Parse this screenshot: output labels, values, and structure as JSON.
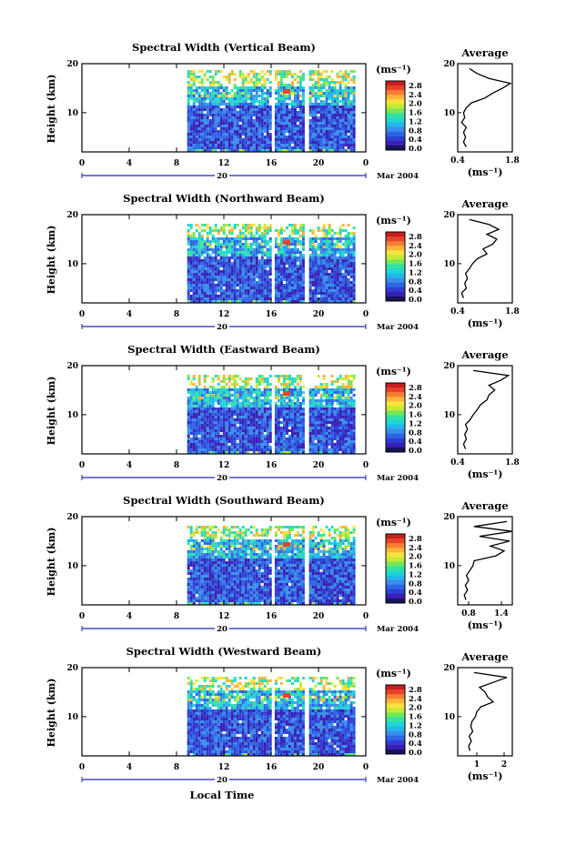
{
  "colorbar_colors": [
    "#17155a",
    "#3a1fb4",
    "#2f3fd4",
    "#2c66e4",
    "#3a8ee9",
    "#22b7e8",
    "#21d6d2",
    "#36e0a4",
    "#74e858",
    "#c8e838",
    "#f7e23d",
    "#fbb43c",
    "#f77d33",
    "#e7432c",
    "#c71f1f"
  ],
  "chart_data": {
    "type": "heatmap",
    "xlabel": "Local Time",
    "x_ticks": [
      "0",
      "4",
      "8",
      "12",
      "16",
      "20",
      "0"
    ],
    "xlim": [
      0,
      24
    ],
    "date_label": "20",
    "month_label": "Mar 2004",
    "ylabel": "Height (km)",
    "y_ticks": [
      "20",
      "10"
    ],
    "ylim": [
      2,
      20
    ],
    "colorbar_unit": "(ms⁻¹)",
    "colorbar_ticks": [
      "2.8",
      "2.4",
      "2.0",
      "1.6",
      "1.2",
      "0.8",
      "0.4",
      "0.0"
    ],
    "data_window_hours": [
      [
        8.9,
        15.9
      ],
      [
        16.3,
        18.7
      ],
      [
        19.2,
        23.1
      ]
    ],
    "panels": [
      {
        "title": "Spectral Width (Vertical Beam)",
        "avg_title": "Average",
        "avg_ticks": [
          "0.4",
          "1.8"
        ],
        "avg_xlim": [
          0.4,
          1.8
        ],
        "avg_unit": "(ms⁻¹)",
        "avg_profile": {
          "height_km": [
            3,
            4,
            5,
            6,
            7,
            8,
            9,
            10,
            11,
            12,
            13,
            14,
            15,
            16,
            17,
            18,
            19
          ],
          "width": [
            0.62,
            0.55,
            0.6,
            0.55,
            0.62,
            0.5,
            0.58,
            0.55,
            0.62,
            0.75,
            1.1,
            1.3,
            1.55,
            1.75,
            1.2,
            0.9,
            0.7
          ]
        }
      },
      {
        "title": "Spectral Width (Northward Beam)",
        "avg_title": "Average",
        "avg_ticks": [
          "0.4",
          "1.8"
        ],
        "avg_xlim": [
          0.4,
          1.8
        ],
        "avg_unit": "(ms⁻¹)",
        "avg_profile": {
          "height_km": [
            3,
            4,
            5,
            6,
            7,
            8,
            9,
            10,
            11,
            12,
            13,
            14,
            15,
            16,
            17,
            18,
            19
          ],
          "width": [
            0.55,
            0.5,
            0.62,
            0.58,
            0.65,
            0.6,
            0.7,
            0.78,
            0.9,
            1.15,
            1.05,
            1.3,
            1.4,
            1.15,
            1.45,
            1.2,
            0.7
          ]
        }
      },
      {
        "title": "Spectral Width (Eastward Beam)",
        "avg_title": "Average",
        "avg_ticks": [
          "0.4",
          "1.8"
        ],
        "avg_xlim": [
          0.4,
          1.8
        ],
        "avg_unit": "(ms⁻¹)",
        "avg_profile": {
          "height_km": [
            3,
            4,
            5,
            6,
            7,
            8,
            9,
            10,
            11,
            12,
            13,
            14,
            15,
            16,
            17,
            18,
            19
          ],
          "width": [
            0.6,
            0.55,
            0.62,
            0.58,
            0.65,
            0.6,
            0.72,
            0.8,
            0.9,
            0.98,
            1.15,
            1.2,
            1.35,
            1.2,
            1.5,
            1.7,
            0.8
          ]
        }
      },
      {
        "title": "Spectral Width (Southward Beam)",
        "avg_title": "Average",
        "avg_ticks": [
          "0.8",
          "1.4"
        ],
        "avg_xlim": [
          0.6,
          1.6
        ],
        "avg_unit": "(ms⁻¹)",
        "avg_profile": {
          "height_km": [
            3,
            4,
            5,
            6,
            7,
            8,
            9,
            10,
            11,
            12,
            13,
            14,
            15,
            16,
            17,
            18,
            19
          ],
          "width": [
            0.75,
            0.72,
            0.78,
            0.74,
            0.8,
            0.76,
            0.82,
            0.88,
            0.9,
            1.3,
            1.45,
            1.2,
            1.55,
            1.0,
            1.6,
            0.9,
            1.5
          ]
        }
      },
      {
        "title": "Spectral Width (Westward Beam)",
        "avg_title": "Average",
        "avg_ticks": [
          "1",
          "2"
        ],
        "avg_xlim": [
          0.3,
          2.3
        ],
        "avg_unit": "(ms⁻¹)",
        "avg_profile": {
          "height_km": [
            3,
            4,
            5,
            6,
            7,
            8,
            9,
            10,
            11,
            12,
            13,
            14,
            15,
            16,
            17,
            18,
            19
          ],
          "width": [
            0.75,
            0.7,
            0.8,
            0.72,
            0.85,
            0.78,
            0.82,
            0.95,
            1.0,
            1.15,
            1.6,
            1.4,
            1.3,
            1.1,
            1.6,
            2.1,
            0.9
          ]
        }
      }
    ]
  }
}
